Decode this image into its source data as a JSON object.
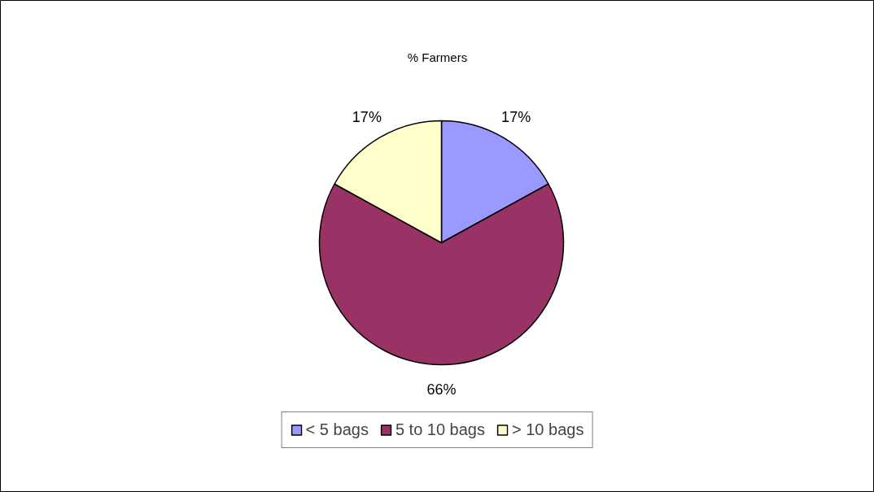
{
  "chart_data": {
    "type": "pie",
    "title": "% Farmers",
    "categories": [
      "< 5 bags",
      "5 to 10 bags",
      "> 10 bags"
    ],
    "values": [
      17,
      66,
      17
    ],
    "colors": [
      "#9999ff",
      "#993366",
      "#ffffcc"
    ],
    "value_labels": [
      "17%",
      "66%",
      "17%"
    ],
    "legend": "bottom"
  }
}
